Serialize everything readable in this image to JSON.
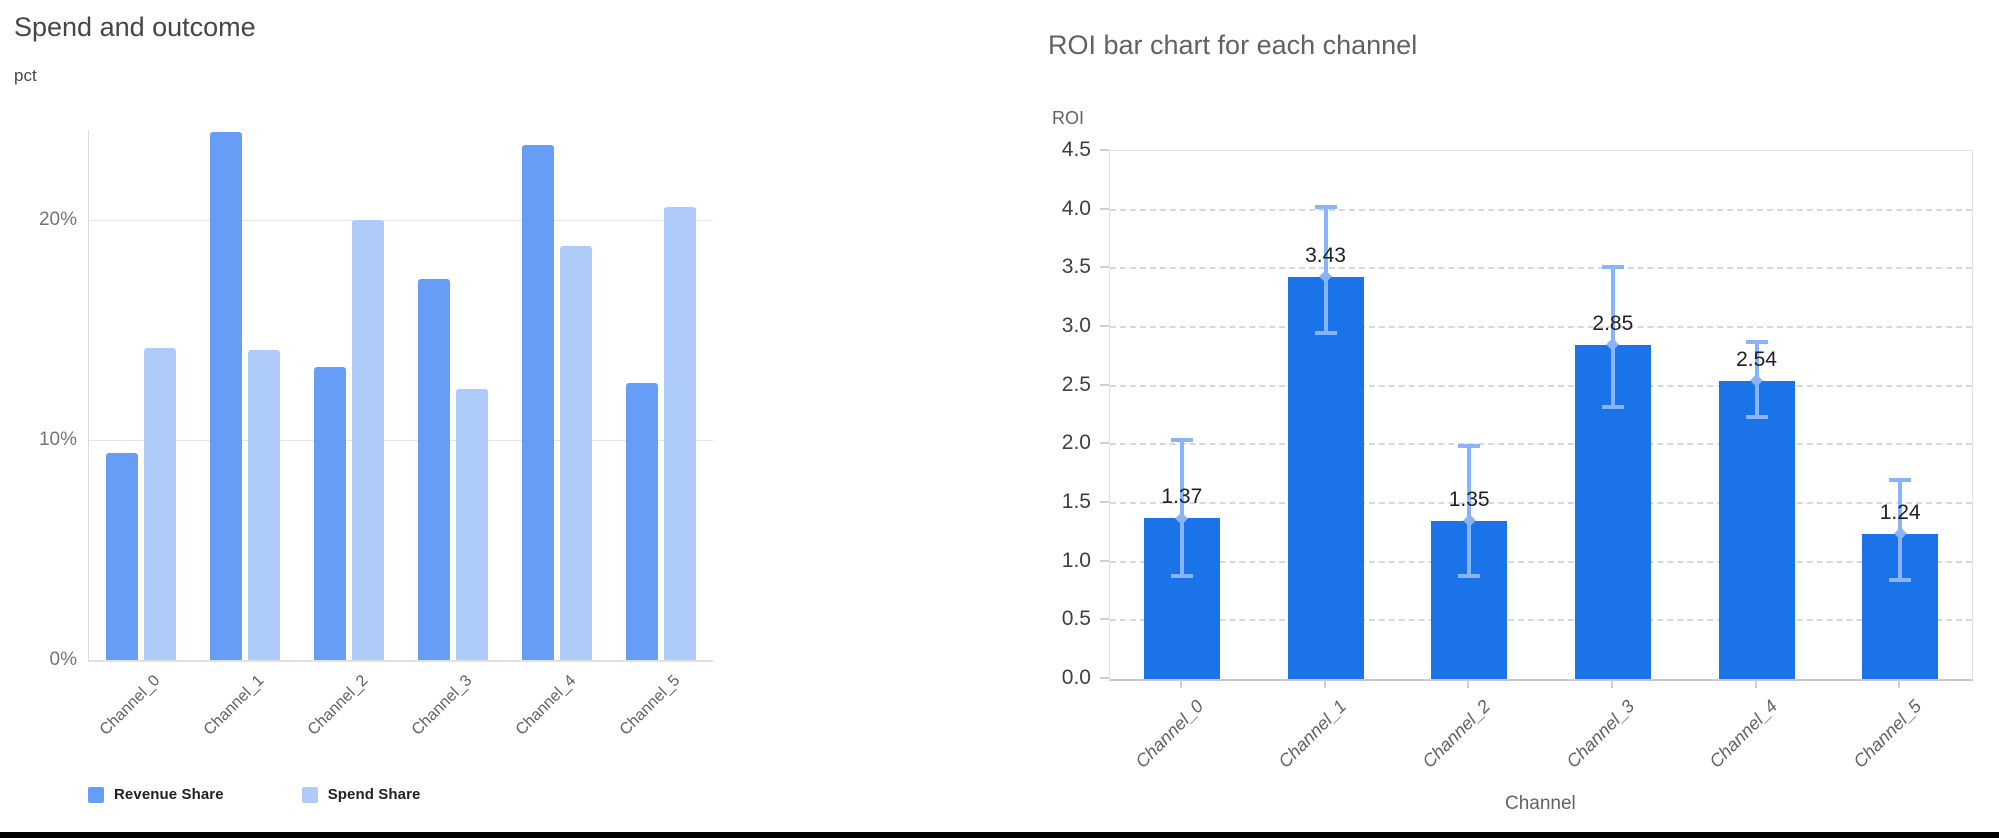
{
  "page": {
    "background": "#ffffff",
    "bottom_bar_color": "#000000",
    "title_color_left": "#464646",
    "title_color_right": "#5f6368"
  },
  "chart_data": [
    {
      "type": "bar",
      "title": "Spend and outcome",
      "ylabel": "pct",
      "xlabel": "",
      "categories": [
        "Channel_0",
        "Channel_1",
        "Channel_2",
        "Channel_3",
        "Channel_4",
        "Channel_5"
      ],
      "series": [
        {
          "name": "Revenue Share",
          "color": "#669df6",
          "values": [
            9.4,
            24.0,
            13.3,
            17.3,
            23.4,
            12.6
          ]
        },
        {
          "name": "Spend Share",
          "color": "#aecbfa",
          "values": [
            14.2,
            14.1,
            20.0,
            12.3,
            18.8,
            20.6
          ]
        }
      ],
      "y_ticks": [
        {
          "value": 0,
          "label": "0%"
        },
        {
          "value": 10,
          "label": "10%"
        },
        {
          "value": 20,
          "label": "20%"
        }
      ],
      "ylim": [
        0,
        24.1
      ],
      "grid": "horizontal-solid",
      "legend_position": "bottom-left"
    },
    {
      "type": "bar",
      "title": "ROI bar chart for each channel",
      "ylabel": "ROI",
      "xlabel": "Channel",
      "categories": [
        "Channel_0",
        "Channel_1",
        "Channel_2",
        "Channel_3",
        "Channel_4",
        "Channel_5"
      ],
      "values": [
        1.37,
        3.43,
        1.35,
        2.85,
        2.54,
        1.24
      ],
      "value_labels": [
        "1.37",
        "3.43",
        "1.35",
        "2.85",
        "2.54",
        "1.24"
      ],
      "error_low": [
        0.88,
        2.95,
        0.88,
        2.32,
        2.23,
        0.84
      ],
      "error_high": [
        2.04,
        4.02,
        1.99,
        3.51,
        2.87,
        1.7
      ],
      "bar_color": "#1a73e8",
      "error_color": "#8ab4f8",
      "y_ticks": [
        0,
        0.5,
        1.0,
        1.5,
        2.0,
        2.5,
        3.0,
        3.5,
        4.0,
        4.5
      ],
      "y_tick_labels": [
        "0.0",
        "0.5",
        "1.0",
        "1.5",
        "2.0",
        "2.5",
        "3.0",
        "3.5",
        "4.0",
        "4.5"
      ],
      "ylim": [
        0,
        4.5
      ],
      "grid": "horizontal-dashed",
      "legend_position": "none"
    }
  ]
}
